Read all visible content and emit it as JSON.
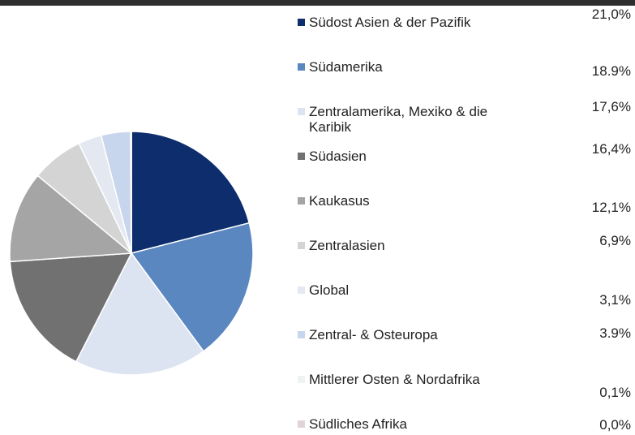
{
  "chart_data": {
    "type": "pie",
    "categories": [
      "Südost Asien & der Pazifik",
      "Südamerika",
      "Zentralamerika, Mexiko & die Karibik",
      "Südasien",
      "Kaukasus",
      "Zentralasien",
      "Global",
      "Zentral- & Osteuropa",
      "Mittlerer Osten & Nordafrika",
      "Südliches Afrika"
    ],
    "values": [
      21.0,
      18.9,
      17.6,
      16.4,
      12.1,
      6.9,
      3.1,
      3.9,
      0.1,
      0.0
    ],
    "value_labels": [
      "21,0%",
      "18.9%",
      "17,6%",
      "16,4%",
      "12,1%",
      "6,9%",
      "3,1%",
      "3.9%",
      "0,1%",
      "0,0%"
    ],
    "colors": [
      "#0d2d6c",
      "#5a87bf",
      "#dde4f1",
      "#717171",
      "#a5a5a5",
      "#d4d4d4",
      "#e4e9f1",
      "#c7d6ec",
      "#eef4f0",
      "#e2d2da"
    ]
  }
}
